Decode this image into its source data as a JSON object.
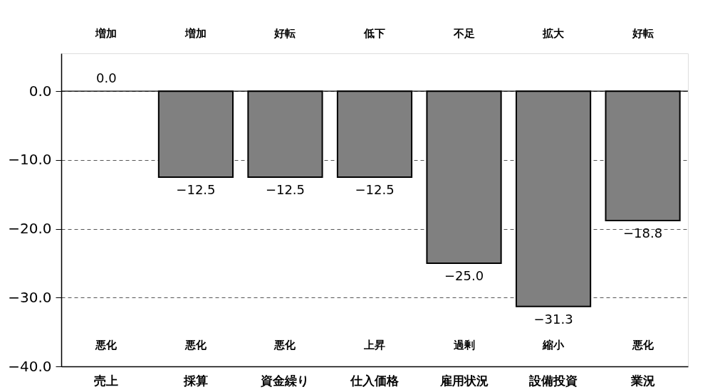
{
  "chart_data": {
    "type": "bar",
    "categories": [
      "売上",
      "採算",
      "資金繰り",
      "仕入価格",
      "雇用状況",
      "設備投資",
      "業況"
    ],
    "values": [
      0.0,
      -12.5,
      -12.5,
      -12.5,
      -25.0,
      -31.3,
      -18.8
    ],
    "color": "#808080",
    "ylim": [
      -40,
      5.5
    ],
    "yticks": [
      {
        "value": 0,
        "label": "0.0"
      },
      {
        "value": -10,
        "label": "−10.0"
      },
      {
        "value": -20,
        "label": "−20.0"
      },
      {
        "value": -30,
        "label": "−30.0"
      },
      {
        "value": -40,
        "label": "−40.0"
      }
    ],
    "grid": "y",
    "ref_lines": [
      {
        "axis": "y",
        "value": 0
      }
    ],
    "value_labels": [
      "0.0",
      "−12.5",
      "−12.5",
      "−12.5",
      "−25.0",
      "−31.3",
      "−18.8"
    ],
    "annotations": [
      "増加",
      "増加",
      "好転",
      "低下",
      "不足",
      "拡大",
      "好転",
      "悪化",
      "悪化",
      "悪化",
      "上昇",
      "過剰",
      "縮小",
      "悪化"
    ]
  }
}
